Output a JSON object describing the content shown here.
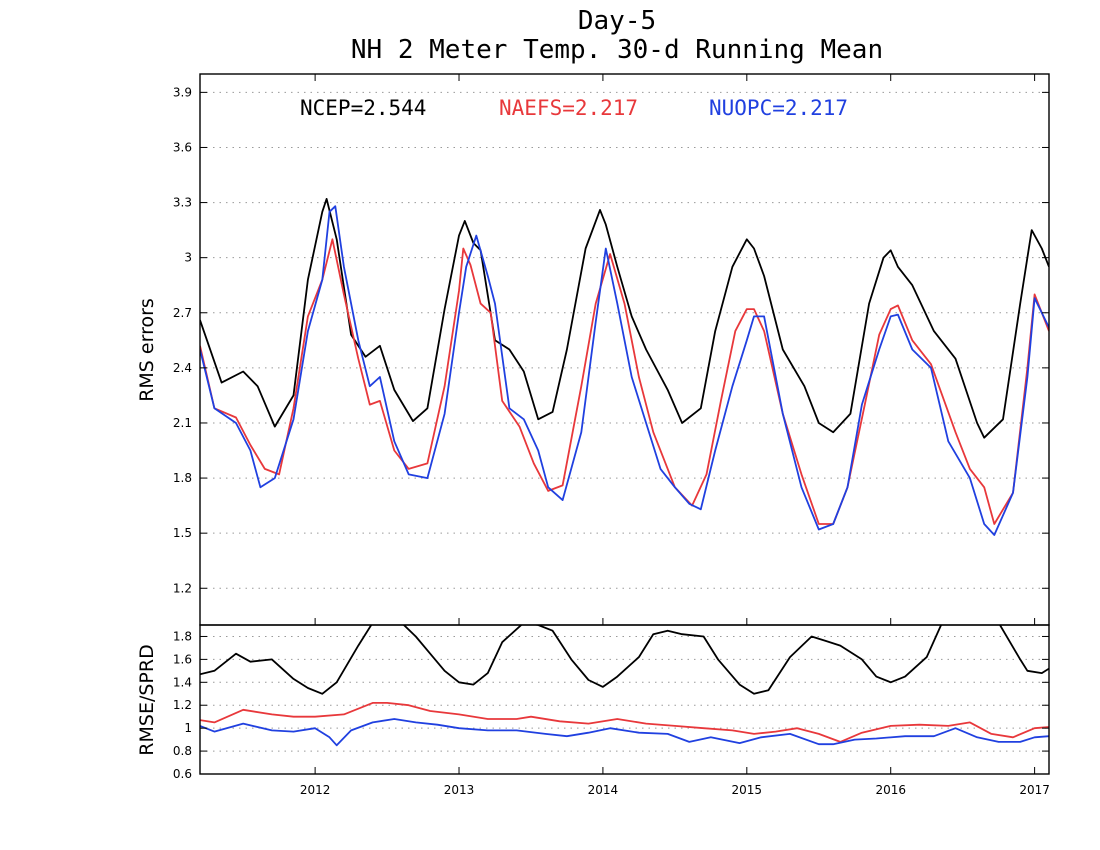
{
  "chart_data": [
    {
      "type": "line",
      "panel": "top",
      "title": "Day-5",
      "subtitle": "NH 2 Meter Temp. 30-d Running Mean",
      "xlabel": "",
      "ylabel": "RMS errors",
      "xlim": [
        2011.2,
        2017.1
      ],
      "ylim": [
        1.0,
        4.0
      ],
      "x_ticks": [
        2012,
        2013,
        2014,
        2015,
        2016,
        2017
      ],
      "x_tick_labels": [
        "2012",
        "2013",
        "2014",
        "2015",
        "2016",
        "2017"
      ],
      "y_ticks": [
        1.2,
        1.5,
        1.8,
        2.1,
        2.4,
        2.7,
        3,
        3.3,
        3.6,
        3.9
      ],
      "y_tick_labels": [
        "1.2",
        "1.5",
        "1.8",
        "2.1",
        "2.4",
        "2.7",
        "3",
        "3.3",
        "3.6",
        "3.9"
      ],
      "grid": true,
      "legend_placement": "top",
      "legend": [
        {
          "label": "NCEP=2.544",
          "color": "#000000"
        },
        {
          "label": "NAEFS=2.217",
          "color": "#e8383b"
        },
        {
          "label": "NUOPC=2.217",
          "color": "#2040e0"
        }
      ],
      "series": [
        {
          "color": "#000000",
          "x": [
            2011.2,
            2011.35,
            2011.5,
            2011.6,
            2011.72,
            2011.85,
            2011.95,
            2012.05,
            2012.08,
            2012.15,
            2012.25,
            2012.35,
            2012.45,
            2012.55,
            2012.68,
            2012.78,
            2012.9,
            2013.0,
            2013.04,
            2013.1,
            2013.15,
            2013.25,
            2013.35,
            2013.45,
            2013.55,
            2013.65,
            2013.75,
            2013.88,
            2013.98,
            2014.02,
            2014.1,
            2014.2,
            2014.3,
            2014.45,
            2014.55,
            2014.68,
            2014.78,
            2014.9,
            2015.0,
            2015.05,
            2015.12,
            2015.25,
            2015.4,
            2015.5,
            2015.6,
            2015.72,
            2015.85,
            2015.95,
            2016.0,
            2016.05,
            2016.15,
            2016.3,
            2016.45,
            2016.6,
            2016.65,
            2016.78,
            2016.9,
            2016.98,
            2017.05,
            2017.1
          ],
          "y": [
            2.66,
            2.32,
            2.38,
            2.3,
            2.08,
            2.25,
            2.88,
            3.25,
            3.32,
            3.1,
            2.58,
            2.46,
            2.52,
            2.28,
            2.11,
            2.18,
            2.72,
            3.12,
            3.2,
            3.08,
            3.04,
            2.55,
            2.5,
            2.38,
            2.12,
            2.16,
            2.5,
            3.05,
            3.26,
            3.18,
            2.95,
            2.68,
            2.5,
            2.28,
            2.1,
            2.18,
            2.6,
            2.95,
            3.1,
            3.05,
            2.9,
            2.5,
            2.3,
            2.1,
            2.05,
            2.15,
            2.75,
            3.0,
            3.04,
            2.95,
            2.85,
            2.6,
            2.45,
            2.1,
            2.02,
            2.12,
            2.75,
            3.15,
            3.05,
            2.95
          ]
        },
        {
          "color": "#e8383b",
          "x": [
            2011.2,
            2011.3,
            2011.45,
            2011.55,
            2011.65,
            2011.75,
            2011.85,
            2011.95,
            2012.05,
            2012.12,
            2012.2,
            2012.3,
            2012.38,
            2012.45,
            2012.55,
            2012.65,
            2012.78,
            2012.9,
            2013.0,
            2013.03,
            2013.08,
            2013.15,
            2013.22,
            2013.3,
            2013.42,
            2013.52,
            2013.62,
            2013.72,
            2013.85,
            2013.95,
            2014.05,
            2014.15,
            2014.25,
            2014.35,
            2014.5,
            2014.62,
            2014.72,
            2014.82,
            2014.92,
            2015.0,
            2015.05,
            2015.12,
            2015.25,
            2015.38,
            2015.5,
            2015.6,
            2015.7,
            2015.82,
            2015.92,
            2016.0,
            2016.05,
            2016.15,
            2016.28,
            2016.45,
            2016.55,
            2016.65,
            2016.72,
            2016.85,
            2016.95,
            2017.0,
            2017.1
          ],
          "y": [
            2.52,
            2.18,
            2.13,
            1.98,
            1.85,
            1.82,
            2.18,
            2.68,
            2.88,
            3.1,
            2.8,
            2.45,
            2.2,
            2.22,
            1.95,
            1.85,
            1.88,
            2.3,
            2.82,
            3.05,
            2.96,
            2.75,
            2.7,
            2.22,
            2.08,
            1.88,
            1.73,
            1.76,
            2.3,
            2.75,
            3.02,
            2.75,
            2.35,
            2.05,
            1.75,
            1.65,
            1.82,
            2.22,
            2.6,
            2.72,
            2.72,
            2.6,
            2.15,
            1.82,
            1.55,
            1.55,
            1.75,
            2.2,
            2.58,
            2.72,
            2.74,
            2.55,
            2.42,
            2.05,
            1.85,
            1.75,
            1.55,
            1.72,
            2.4,
            2.8,
            2.6
          ]
        },
        {
          "color": "#2040e0",
          "x": [
            2011.2,
            2011.3,
            2011.45,
            2011.55,
            2011.62,
            2011.72,
            2011.85,
            2011.95,
            2012.05,
            2012.1,
            2012.14,
            2012.2,
            2012.3,
            2012.38,
            2012.45,
            2012.55,
            2012.65,
            2012.78,
            2012.9,
            2013.0,
            2013.05,
            2013.12,
            2013.2,
            2013.25,
            2013.35,
            2013.45,
            2013.55,
            2013.62,
            2013.72,
            2013.85,
            2013.95,
            2014.02,
            2014.1,
            2014.2,
            2014.3,
            2014.4,
            2014.5,
            2014.6,
            2014.68,
            2014.78,
            2014.9,
            2015.0,
            2015.05,
            2015.12,
            2015.25,
            2015.38,
            2015.5,
            2015.6,
            2015.7,
            2015.8,
            2015.92,
            2016.0,
            2016.05,
            2016.15,
            2016.28,
            2016.4,
            2016.55,
            2016.65,
            2016.72,
            2016.85,
            2016.95,
            2017.0,
            2017.1
          ],
          "y": [
            2.5,
            2.18,
            2.1,
            1.95,
            1.75,
            1.8,
            2.12,
            2.6,
            2.88,
            3.25,
            3.28,
            2.95,
            2.55,
            2.3,
            2.35,
            2.0,
            1.82,
            1.8,
            2.15,
            2.7,
            2.95,
            3.12,
            2.9,
            2.75,
            2.18,
            2.12,
            1.95,
            1.75,
            1.68,
            2.05,
            2.65,
            3.05,
            2.75,
            2.35,
            2.1,
            1.85,
            1.75,
            1.66,
            1.63,
            1.95,
            2.3,
            2.55,
            2.68,
            2.68,
            2.15,
            1.75,
            1.52,
            1.55,
            1.75,
            2.2,
            2.5,
            2.68,
            2.69,
            2.5,
            2.4,
            2.0,
            1.8,
            1.55,
            1.49,
            1.72,
            2.35,
            2.78,
            2.62
          ]
        }
      ]
    },
    {
      "type": "line",
      "panel": "bottom",
      "xlabel": "",
      "ylabel": "RMSE/SPRD",
      "xlim": [
        2011.2,
        2017.1
      ],
      "ylim": [
        0.6,
        1.9
      ],
      "y_ticks": [
        0.6,
        0.8,
        1,
        1.2,
        1.4,
        1.6,
        1.8
      ],
      "y_tick_labels": [
        "0.6",
        "0.8",
        "1",
        "1.2",
        "1.4",
        "1.6",
        "1.8"
      ],
      "grid": true,
      "series": [
        {
          "color": "#000000",
          "x": [
            2011.2,
            2011.3,
            2011.45,
            2011.55,
            2011.7,
            2011.85,
            2011.95,
            2012.05,
            2012.15,
            2012.3,
            2012.4,
            2012.5,
            2012.6,
            2012.7,
            2012.8,
            2012.9,
            2013.0,
            2013.1,
            2013.2,
            2013.3,
            2013.45,
            2013.55,
            2013.65,
            2013.78,
            2013.9,
            2014.0,
            2014.1,
            2014.25,
            2014.35,
            2014.45,
            2014.55,
            2014.7,
            2014.8,
            2014.95,
            2015.05,
            2015.15,
            2015.3,
            2015.45,
            2015.55,
            2015.65,
            2015.8,
            2015.9,
            2016.0,
            2016.1,
            2016.25,
            2016.35,
            2016.5,
            2016.6,
            2016.75,
            2016.9,
            2016.95,
            2017.05,
            2017.1
          ],
          "y": [
            1.47,
            1.5,
            1.65,
            1.58,
            1.6,
            1.43,
            1.35,
            1.3,
            1.4,
            1.72,
            1.92,
            1.96,
            1.92,
            1.8,
            1.65,
            1.5,
            1.4,
            1.38,
            1.48,
            1.75,
            1.92,
            1.9,
            1.85,
            1.6,
            1.42,
            1.36,
            1.45,
            1.62,
            1.82,
            1.85,
            1.82,
            1.8,
            1.6,
            1.38,
            1.3,
            1.33,
            1.62,
            1.8,
            1.76,
            1.72,
            1.6,
            1.45,
            1.4,
            1.45,
            1.62,
            1.9,
            1.98,
            1.95,
            1.92,
            1.6,
            1.5,
            1.48,
            1.52
          ]
        },
        {
          "color": "#e8383b",
          "x": [
            2011.2,
            2011.3,
            2011.5,
            2011.7,
            2011.85,
            2012.0,
            2012.2,
            2012.4,
            2012.5,
            2012.65,
            2012.8,
            2013.0,
            2013.2,
            2013.4,
            2013.5,
            2013.7,
            2013.9,
            2014.1,
            2014.3,
            2014.5,
            2014.7,
            2014.9,
            2015.05,
            2015.2,
            2015.35,
            2015.5,
            2015.65,
            2015.8,
            2016.0,
            2016.2,
            2016.4,
            2016.55,
            2016.7,
            2016.85,
            2017.0,
            2017.1
          ],
          "y": [
            1.07,
            1.05,
            1.16,
            1.12,
            1.1,
            1.1,
            1.12,
            1.22,
            1.22,
            1.2,
            1.15,
            1.12,
            1.08,
            1.08,
            1.1,
            1.06,
            1.04,
            1.08,
            1.04,
            1.02,
            1.0,
            0.98,
            0.95,
            0.97,
            1.0,
            0.95,
            0.88,
            0.96,
            1.02,
            1.03,
            1.02,
            1.05,
            0.95,
            0.92,
            1.0,
            1.01
          ]
        },
        {
          "color": "#2040e0",
          "x": [
            2011.2,
            2011.3,
            2011.5,
            2011.7,
            2011.85,
            2012.0,
            2012.1,
            2012.15,
            2012.25,
            2012.4,
            2012.55,
            2012.7,
            2012.85,
            2013.0,
            2013.2,
            2013.4,
            2013.6,
            2013.75,
            2013.9,
            2014.05,
            2014.25,
            2014.45,
            2014.6,
            2014.75,
            2014.95,
            2015.1,
            2015.3,
            2015.5,
            2015.6,
            2015.75,
            2015.9,
            2016.1,
            2016.3,
            2016.45,
            2016.6,
            2016.75,
            2016.9,
            2017.0,
            2017.1
          ],
          "y": [
            1.02,
            0.97,
            1.04,
            0.98,
            0.97,
            1.0,
            0.92,
            0.85,
            0.98,
            1.05,
            1.08,
            1.05,
            1.03,
            1.0,
            0.98,
            0.98,
            0.95,
            0.93,
            0.96,
            1.0,
            0.96,
            0.95,
            0.88,
            0.92,
            0.87,
            0.92,
            0.95,
            0.86,
            0.86,
            0.9,
            0.91,
            0.93,
            0.93,
            1.0,
            0.92,
            0.88,
            0.88,
            0.92,
            0.93
          ]
        }
      ]
    }
  ]
}
